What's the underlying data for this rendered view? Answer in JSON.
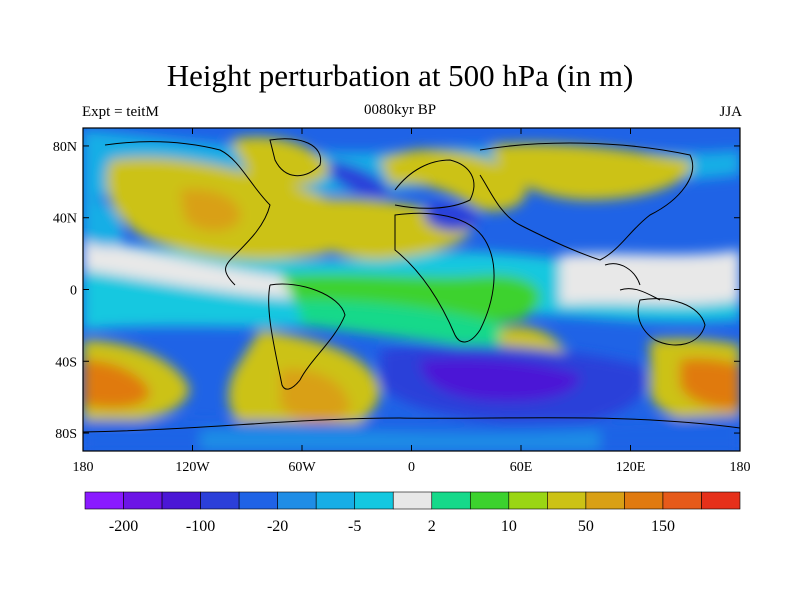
{
  "title": "Height perturbation at 500 hPa (in m)",
  "left_label": "Expt = teitM",
  "center_label": "0080kyr BP",
  "right_label": "JJA",
  "lon_ticks": [
    "180",
    "120W",
    "60W",
    "0",
    "60E",
    "120E",
    "180"
  ],
  "lat_ticks": [
    "80N",
    "40N",
    "0",
    "40S",
    "80S"
  ],
  "colorbar": {
    "colors": [
      "#8a1aff",
      "#6c14e6",
      "#4b17d6",
      "#2b3fd9",
      "#1f63e6",
      "#1f8de6",
      "#17aee6",
      "#13c8e0",
      "#e8e8e8",
      "#16d98a",
      "#3cd22e",
      "#9ad613",
      "#ccc215",
      "#d9a015",
      "#e07a0f",
      "#e65a1a",
      "#e6301a"
    ],
    "labels": [
      "-200",
      "-100",
      "-20",
      "-5",
      "2",
      "10",
      "50",
      "150"
    ]
  }
}
